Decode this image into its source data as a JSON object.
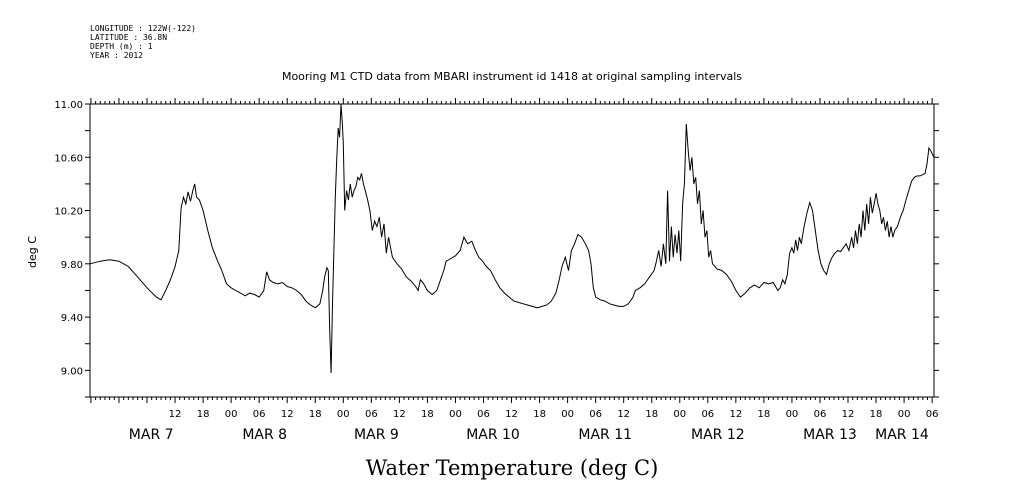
{
  "meta": [
    "LONGITUDE : 122W(-122)",
    "LATITUDE : 36.8N",
    "DEPTH (m) : 1",
    "YEAR : 2012"
  ],
  "chart_data": {
    "type": "line",
    "title": "Mooring M1 CTD data from MBARI instrument id 1418 at original sampling intervals",
    "xlabel": "Water Temperature (deg C)",
    "ylabel": "deg C",
    "ylim": [
      8.8,
      11.0
    ],
    "yticks": [
      9.0,
      9.4,
      9.8,
      10.2,
      10.6,
      11.0
    ],
    "ytick_labels": [
      "9.00",
      "9.40",
      "9.80",
      "10.20",
      "10.60",
      "11.00"
    ],
    "x_unit": "hours since MAR 7 00:00",
    "xlim": [
      -6.2,
      174.4
    ],
    "hour_ticks": [
      {
        "h": 12,
        "label": "12"
      },
      {
        "h": 18,
        "label": "18"
      },
      {
        "h": 24,
        "label": "00"
      },
      {
        "h": 30,
        "label": "06"
      },
      {
        "h": 36,
        "label": "12"
      },
      {
        "h": 42,
        "label": "18"
      },
      {
        "h": 48,
        "label": "00"
      },
      {
        "h": 54,
        "label": "06"
      },
      {
        "h": 60,
        "label": "12"
      },
      {
        "h": 66,
        "label": "18"
      },
      {
        "h": 72,
        "label": "00"
      },
      {
        "h": 78,
        "label": "06"
      },
      {
        "h": 84,
        "label": "12"
      },
      {
        "h": 90,
        "label": "18"
      },
      {
        "h": 96,
        "label": "00"
      },
      {
        "h": 102,
        "label": "06"
      },
      {
        "h": 108,
        "label": "12"
      },
      {
        "h": 114,
        "label": "18"
      },
      {
        "h": 120,
        "label": "00"
      },
      {
        "h": 126,
        "label": "06"
      },
      {
        "h": 132,
        "label": "12"
      },
      {
        "h": 138,
        "label": "18"
      },
      {
        "h": 144,
        "label": "00"
      },
      {
        "h": 150,
        "label": "06"
      },
      {
        "h": 156,
        "label": "12"
      },
      {
        "h": 162,
        "label": "18"
      },
      {
        "h": 168,
        "label": "00"
      },
      {
        "h": 174,
        "label": "06"
      }
    ],
    "day_labels": [
      {
        "h": 2.1,
        "label": "MAR  7"
      },
      {
        "h": 26.4,
        "label": "MAR  8"
      },
      {
        "h": 50.3,
        "label": "MAR  9"
      },
      {
        "h": 74.3,
        "label": "MAR 10"
      },
      {
        "h": 98.3,
        "label": "MAR 11"
      },
      {
        "h": 122.4,
        "label": "MAR 12"
      },
      {
        "h": 146.4,
        "label": "MAR 13"
      },
      {
        "h": 161.8,
        "label": "MAR 14"
      }
    ],
    "series": [
      {
        "values": [
          [
            -6.2,
            9.8
          ],
          [
            -4,
            9.82
          ],
          [
            -2,
            9.83
          ],
          [
            0,
            9.82
          ],
          [
            2,
            9.78
          ],
          [
            4,
            9.7
          ],
          [
            6,
            9.62
          ],
          [
            8,
            9.55
          ],
          [
            9,
            9.53
          ],
          [
            10,
            9.6
          ],
          [
            11,
            9.68
          ],
          [
            12,
            9.78
          ],
          [
            12.8,
            9.9
          ],
          [
            13.3,
            10.22
          ],
          [
            13.8,
            10.3
          ],
          [
            14.3,
            10.25
          ],
          [
            14.8,
            10.34
          ],
          [
            15.3,
            10.27
          ],
          [
            15.8,
            10.35
          ],
          [
            16.2,
            10.4
          ],
          [
            16.6,
            10.3
          ],
          [
            17.2,
            10.28
          ],
          [
            18,
            10.2
          ],
          [
            19,
            10.05
          ],
          [
            20,
            9.92
          ],
          [
            21,
            9.83
          ],
          [
            22,
            9.75
          ],
          [
            23,
            9.65
          ],
          [
            24,
            9.62
          ],
          [
            25,
            9.6
          ],
          [
            26,
            9.58
          ],
          [
            27,
            9.56
          ],
          [
            28,
            9.58
          ],
          [
            29,
            9.57
          ],
          [
            30,
            9.55
          ],
          [
            31,
            9.6
          ],
          [
            31.6,
            9.74
          ],
          [
            32.2,
            9.68
          ],
          [
            33,
            9.66
          ],
          [
            34,
            9.65
          ],
          [
            35,
            9.66
          ],
          [
            36,
            9.63
          ],
          [
            37,
            9.62
          ],
          [
            38,
            9.6
          ],
          [
            39,
            9.57
          ],
          [
            40,
            9.52
          ],
          [
            41,
            9.49
          ],
          [
            42,
            9.47
          ],
          [
            43,
            9.5
          ],
          [
            43.6,
            9.6
          ],
          [
            44,
            9.7
          ],
          [
            44.5,
            9.77
          ],
          [
            44.8,
            9.75
          ],
          [
            45.1,
            9.3
          ],
          [
            45.4,
            8.98
          ],
          [
            45.7,
            9.5
          ],
          [
            46,
            9.9
          ],
          [
            46.3,
            10.3
          ],
          [
            46.6,
            10.6
          ],
          [
            46.9,
            10.82
          ],
          [
            47.2,
            10.75
          ],
          [
            47.5,
            11.0
          ],
          [
            47.8,
            10.85
          ],
          [
            48,
            10.7
          ],
          [
            48.3,
            10.2
          ],
          [
            48.7,
            10.35
          ],
          [
            49.1,
            10.28
          ],
          [
            49.5,
            10.4
          ],
          [
            49.9,
            10.3
          ],
          [
            50.3,
            10.35
          ],
          [
            50.7,
            10.38
          ],
          [
            51.1,
            10.45
          ],
          [
            51.5,
            10.43
          ],
          [
            51.9,
            10.48
          ],
          [
            52.3,
            10.4
          ],
          [
            52.7,
            10.35
          ],
          [
            53.2,
            10.28
          ],
          [
            53.7,
            10.2
          ],
          [
            54.2,
            10.05
          ],
          [
            54.7,
            10.12
          ],
          [
            55.2,
            10.08
          ],
          [
            55.7,
            10.15
          ],
          [
            56.2,
            10.0
          ],
          [
            56.7,
            10.1
          ],
          [
            57.2,
            9.88
          ],
          [
            57.7,
            10.0
          ],
          [
            58.5,
            9.85
          ],
          [
            59.5,
            9.8
          ],
          [
            60.5,
            9.76
          ],
          [
            61.5,
            9.7
          ],
          [
            62.5,
            9.67
          ],
          [
            63.5,
            9.63
          ],
          [
            64,
            9.6
          ],
          [
            64.5,
            9.68
          ],
          [
            65.2,
            9.65
          ],
          [
            66,
            9.6
          ],
          [
            67,
            9.57
          ],
          [
            68,
            9.6
          ],
          [
            68.8,
            9.68
          ],
          [
            69.5,
            9.75
          ],
          [
            70,
            9.82
          ],
          [
            71,
            9.84
          ],
          [
            72,
            9.86
          ],
          [
            73,
            9.9
          ],
          [
            73.8,
            10.0
          ],
          [
            74.6,
            9.95
          ],
          [
            75.5,
            9.97
          ],
          [
            76.3,
            9.9
          ],
          [
            77,
            9.85
          ],
          [
            77.8,
            9.82
          ],
          [
            78.6,
            9.78
          ],
          [
            79.5,
            9.75
          ],
          [
            80.5,
            9.68
          ],
          [
            81.5,
            9.62
          ],
          [
            82.5,
            9.58
          ],
          [
            83.5,
            9.55
          ],
          [
            84.5,
            9.52
          ],
          [
            85.5,
            9.51
          ],
          [
            86.5,
            9.5
          ],
          [
            87.5,
            9.49
          ],
          [
            88.5,
            9.48
          ],
          [
            89.5,
            9.47
          ],
          [
            90.5,
            9.48
          ],
          [
            91.5,
            9.49
          ],
          [
            92.5,
            9.52
          ],
          [
            93.5,
            9.58
          ],
          [
            94.2,
            9.68
          ],
          [
            94.8,
            9.78
          ],
          [
            95.5,
            9.85
          ],
          [
            96.2,
            9.75
          ],
          [
            96.8,
            9.9
          ],
          [
            97.5,
            9.95
          ],
          [
            98.2,
            10.02
          ],
          [
            99,
            10.0
          ],
          [
            99.8,
            9.95
          ],
          [
            100.5,
            9.9
          ],
          [
            101,
            9.8
          ],
          [
            101.5,
            9.62
          ],
          [
            102,
            9.55
          ],
          [
            103,
            9.53
          ],
          [
            104,
            9.52
          ],
          [
            105,
            9.5
          ],
          [
            106,
            9.49
          ],
          [
            107,
            9.48
          ],
          [
            108,
            9.48
          ],
          [
            109,
            9.5
          ],
          [
            110,
            9.55
          ],
          [
            110.5,
            9.6
          ],
          [
            111.5,
            9.62
          ],
          [
            112.5,
            9.65
          ],
          [
            113.5,
            9.7
          ],
          [
            114.5,
            9.75
          ],
          [
            115,
            9.82
          ],
          [
            115.5,
            9.9
          ],
          [
            116,
            9.78
          ],
          [
            116.5,
            9.95
          ],
          [
            117,
            9.8
          ],
          [
            117.4,
            10.35
          ],
          [
            117.8,
            9.82
          ],
          [
            118.2,
            10.08
          ],
          [
            118.6,
            9.85
          ],
          [
            119,
            10.02
          ],
          [
            119.4,
            9.88
          ],
          [
            119.8,
            10.05
          ],
          [
            120.2,
            9.82
          ],
          [
            120.6,
            10.25
          ],
          [
            121,
            10.4
          ],
          [
            121.4,
            10.85
          ],
          [
            121.8,
            10.65
          ],
          [
            122.2,
            10.5
          ],
          [
            122.6,
            10.6
          ],
          [
            123,
            10.4
          ],
          [
            123.4,
            10.45
          ],
          [
            123.8,
            10.25
          ],
          [
            124.2,
            10.35
          ],
          [
            124.6,
            10.1
          ],
          [
            125,
            10.2
          ],
          [
            125.4,
            10.0
          ],
          [
            125.8,
            10.05
          ],
          [
            126.2,
            9.85
          ],
          [
            126.6,
            9.9
          ],
          [
            127,
            9.8
          ],
          [
            128,
            9.76
          ],
          [
            129,
            9.75
          ],
          [
            130,
            9.72
          ],
          [
            131,
            9.67
          ],
          [
            132,
            9.6
          ],
          [
            133,
            9.55
          ],
          [
            134,
            9.58
          ],
          [
            135,
            9.62
          ],
          [
            136,
            9.64
          ],
          [
            137,
            9.62
          ],
          [
            138,
            9.66
          ],
          [
            139,
            9.65
          ],
          [
            140,
            9.66
          ],
          [
            141,
            9.6
          ],
          [
            141.5,
            9.62
          ],
          [
            142,
            9.68
          ],
          [
            142.5,
            9.65
          ],
          [
            143,
            9.72
          ],
          [
            143.5,
            9.88
          ],
          [
            144,
            9.92
          ],
          [
            144.4,
            9.88
          ],
          [
            144.8,
            9.98
          ],
          [
            145.2,
            9.9
          ],
          [
            145.6,
            10.0
          ],
          [
            146,
            9.95
          ],
          [
            146.6,
            10.08
          ],
          [
            147.2,
            10.18
          ],
          [
            147.8,
            10.26
          ],
          [
            148.4,
            10.2
          ],
          [
            149,
            10.05
          ],
          [
            149.6,
            9.9
          ],
          [
            150.2,
            9.8
          ],
          [
            150.8,
            9.75
          ],
          [
            151.4,
            9.72
          ],
          [
            152,
            9.8
          ],
          [
            152.6,
            9.85
          ],
          [
            153.2,
            9.88
          ],
          [
            153.8,
            9.9
          ],
          [
            154.4,
            9.89
          ],
          [
            155,
            9.92
          ],
          [
            155.6,
            9.95
          ],
          [
            156.2,
            9.9
          ],
          [
            156.8,
            10.0
          ],
          [
            157.2,
            9.92
          ],
          [
            157.6,
            10.05
          ],
          [
            158,
            9.95
          ],
          [
            158.4,
            10.1
          ],
          [
            158.8,
            10.0
          ],
          [
            159.2,
            10.2
          ],
          [
            159.6,
            10.05
          ],
          [
            160,
            10.25
          ],
          [
            160.4,
            10.1
          ],
          [
            160.8,
            10.3
          ],
          [
            161.2,
            10.18
          ],
          [
            161.6,
            10.25
          ],
          [
            162,
            10.33
          ],
          [
            162.4,
            10.25
          ],
          [
            162.8,
            10.2
          ],
          [
            163.2,
            10.1
          ],
          [
            163.6,
            10.15
          ],
          [
            164,
            10.05
          ],
          [
            164.4,
            10.12
          ],
          [
            164.8,
            10.0
          ],
          [
            165.2,
            10.08
          ],
          [
            165.6,
            10.0
          ],
          [
            166,
            10.05
          ],
          [
            166.6,
            10.08
          ],
          [
            167.2,
            10.15
          ],
          [
            167.8,
            10.2
          ],
          [
            168.4,
            10.28
          ],
          [
            169,
            10.35
          ],
          [
            169.6,
            10.42
          ],
          [
            170.2,
            10.45
          ],
          [
            170.8,
            10.46
          ],
          [
            171.4,
            10.46
          ],
          [
            172,
            10.47
          ],
          [
            172.5,
            10.48
          ],
          [
            172.9,
            10.55
          ],
          [
            173.3,
            10.67
          ],
          [
            173.7,
            10.65
          ],
          [
            174.1,
            10.62
          ],
          [
            174.4,
            10.6
          ]
        ]
      }
    ]
  }
}
